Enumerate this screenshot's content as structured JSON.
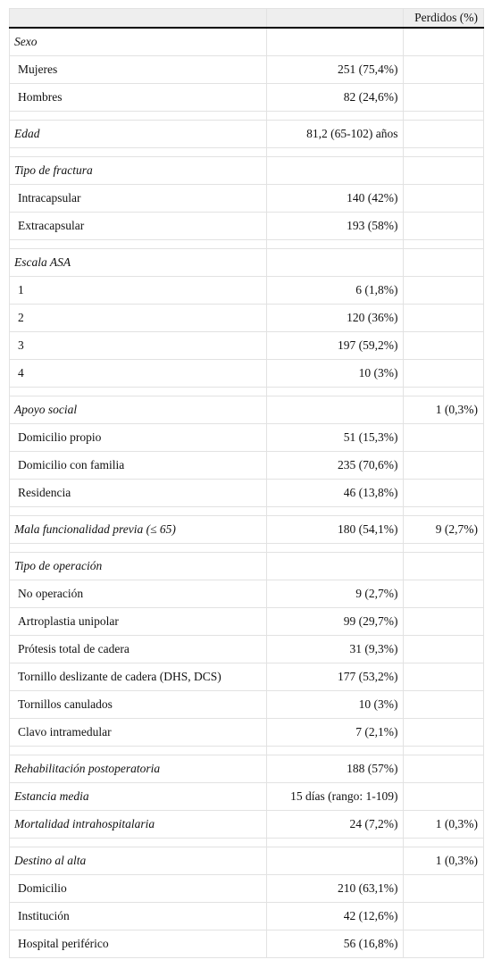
{
  "table": {
    "header": {
      "lost": "Perdidos (%)"
    },
    "groups": [
      [
        {
          "label": "Sexo",
          "italic": true
        },
        {
          "label": "Mujeres",
          "value": "251 (75,4%)"
        },
        {
          "label": "Hombres",
          "value": "82 (24,6%)"
        }
      ],
      [
        {
          "label": "Edad",
          "italic": true,
          "value": "81,2 (65-102) años"
        }
      ],
      [
        {
          "label": "Tipo de fractura",
          "italic": true
        },
        {
          "label": "Intracapsular",
          "value": "140 (42%)"
        },
        {
          "label": "Extracapsular",
          "value": "193 (58%)"
        }
      ],
      [
        {
          "label": "Escala ASA",
          "italic": true
        },
        {
          "label": "1",
          "value": "6 (1,8%)"
        },
        {
          "label": "2",
          "value": "120 (36%)"
        },
        {
          "label": "3",
          "value": "197 (59,2%)"
        },
        {
          "label": "4",
          "value": "10 (3%)"
        }
      ],
      [
        {
          "label": "Apoyo social",
          "italic": true,
          "lost": "1 (0,3%)"
        },
        {
          "label": "Domicilio propio",
          "value": "51 (15,3%)"
        },
        {
          "label": "Domicilio con familia",
          "value": "235 (70,6%)"
        },
        {
          "label": "Residencia",
          "value": "46 (13,8%)"
        }
      ],
      [
        {
          "label": "Mala funcionalidad previa (≤ 65)",
          "italic": true,
          "value": "180 (54,1%)",
          "lost": "9 (2,7%)"
        }
      ],
      [
        {
          "label": "Tipo de operación",
          "italic": true
        },
        {
          "label": "No operación",
          "value": "9 (2,7%)"
        },
        {
          "label": "Artroplastia unipolar",
          "value": "99 (29,7%)"
        },
        {
          "label": "Prótesis total de cadera",
          "value": "31 (9,3%)"
        },
        {
          "label": "Tornillo deslizante de cadera (DHS, DCS)",
          "value": "177 (53,2%)"
        },
        {
          "label": "Tornillos canulados",
          "value": "10 (3%)"
        },
        {
          "label": "Clavo intramedular",
          "value": "7 (2,1%)"
        }
      ],
      [
        {
          "label": "Rehabilitación postoperatoria",
          "italic": true,
          "value": "188 (57%)"
        },
        {
          "label": "Estancia media",
          "italic": true,
          "value": "15 días (rango: 1-109)"
        },
        {
          "label": "Mortalidad intrahospitalaria",
          "italic": true,
          "value": "24 (7,2%)",
          "lost": "1 (0,3%)"
        }
      ],
      [
        {
          "label": "Destino al alta",
          "italic": true,
          "lost": "1 (0,3%)"
        },
        {
          "label": "Domicilio",
          "value": "210 (63,1%)"
        },
        {
          "label": "Institución",
          "value": "42 (12,6%)"
        },
        {
          "label": "Hospital periférico",
          "value": "56 (16,8%)"
        }
      ]
    ]
  }
}
